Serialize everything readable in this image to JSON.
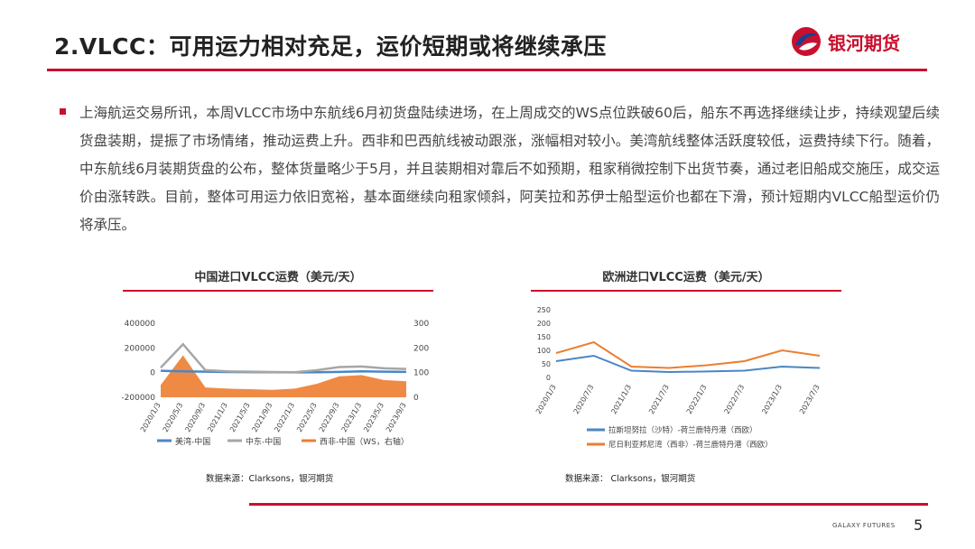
{
  "header": {
    "title": "2.VLCC：可用运力相对充足，运价短期或将继续承压",
    "brand_name": "银河期货",
    "accent_color": "#c8102e"
  },
  "body": {
    "paragraph": "上海航运交易所讯，本周VLCC市场中东航线6月初货盘陆续进场，在上周成交的WS点位跌破60后，船东不再选择继续让步，持续观望后续货盘装期，提振了市场情绪，推动运费上升。西非和巴西航线被动跟涨，涨幅相对较小。美湾航线整体活跃度较低，运费持续下行。随着，中东航线6月装期货盘的公布，整体货量略少于5月，并且装期相对靠后不如预期，租家稍微控制下出货节奏，通过老旧船成交施压，成交运价由涨转跌。目前，整体可用运力依旧宽裕，基本面继续向租家倾斜，阿芙拉和苏伊士船型运价也都在下滑，预计短期内VLCC船型运价仍将承压。"
  },
  "chart_left_meta": {
    "source": "数据来源：Clarksons，银河期货"
  },
  "chart_right_meta": {
    "source": "数据来源： Clarksons，银河期货"
  },
  "footer": {
    "brand": "GALAXY FUTURES",
    "page": "5"
  },
  "chart_data": [
    {
      "type": "line",
      "title": "中国进口VLCC运费（美元/天）",
      "x": [
        "2020/1/3",
        "2020/5/3",
        "2020/9/3",
        "2021/1/3",
        "2021/5/3",
        "2021/9/3",
        "2022/1/3",
        "2022/5/3",
        "2022/9/3",
        "2023/1/3",
        "2023/5/3",
        "2023/9/3"
      ],
      "x_ticks": [
        "2020/1/3",
        "2020/5/3",
        "2020/9/3",
        "2021/1/3",
        "2021/5/3",
        "2021/9/3",
        "2022/1/3",
        "2022/5/3",
        "2022/9/3",
        "2023/1/3",
        "2023/5/3",
        "2023/9/3"
      ],
      "y_left": {
        "ticks": [
          "400000",
          "200000",
          "0",
          "-200000"
        ],
        "ylim": [
          -200000,
          400000
        ]
      },
      "y_right": {
        "ticks": [
          "300",
          "200",
          "100",
          "0"
        ],
        "ylim": [
          0,
          300
        ]
      },
      "series": [
        {
          "name": "美湾-中国",
          "axis": "left",
          "color": "#4a86c5",
          "values": [
            15000,
            10000,
            8000,
            5000,
            4000,
            3000,
            2000,
            3000,
            6000,
            10000,
            8000,
            6000
          ]
        },
        {
          "name": "中东-中国",
          "axis": "left",
          "color": "#a6a6a6",
          "values": [
            40000,
            230000,
            20000,
            10000,
            8000,
            5000,
            3000,
            20000,
            45000,
            50000,
            35000,
            30000
          ]
        },
        {
          "name": "西非-中国（WS，右轴）",
          "axis": "right",
          "color": "#ed7d31",
          "values": [
            50,
            170,
            40,
            35,
            33,
            30,
            35,
            55,
            85,
            90,
            70,
            65
          ]
        }
      ]
    },
    {
      "type": "line",
      "title": "欧洲进口VLCC运费（美元/天）",
      "x": [
        "2020/1/3",
        "2020/7/3",
        "2021/1/3",
        "2021/7/3",
        "2022/1/3",
        "2022/7/3",
        "2023/1/3",
        "2023/7/3"
      ],
      "x_ticks": [
        "2020/1/3",
        "2020/7/3",
        "2021/1/3",
        "2021/7/3",
        "2022/1/3",
        "2022/7/3",
        "2023/1/3",
        "2023/7/3"
      ],
      "y_ticks": [
        "250",
        "200",
        "150",
        "100",
        "50",
        "0"
      ],
      "ylim": [
        0,
        250
      ],
      "series": [
        {
          "name": "拉斯坦努拉（沙特）-荷兰鹿特丹港（西欧）",
          "color": "#4a86c5",
          "values": [
            60,
            80,
            25,
            20,
            22,
            25,
            40,
            35
          ]
        },
        {
          "name": "尼日利亚邦尼湾（西非）-荷兰鹿特丹港（西欧）",
          "color": "#ed7d31",
          "values": [
            90,
            130,
            40,
            35,
            45,
            60,
            100,
            80
          ]
        }
      ]
    }
  ]
}
